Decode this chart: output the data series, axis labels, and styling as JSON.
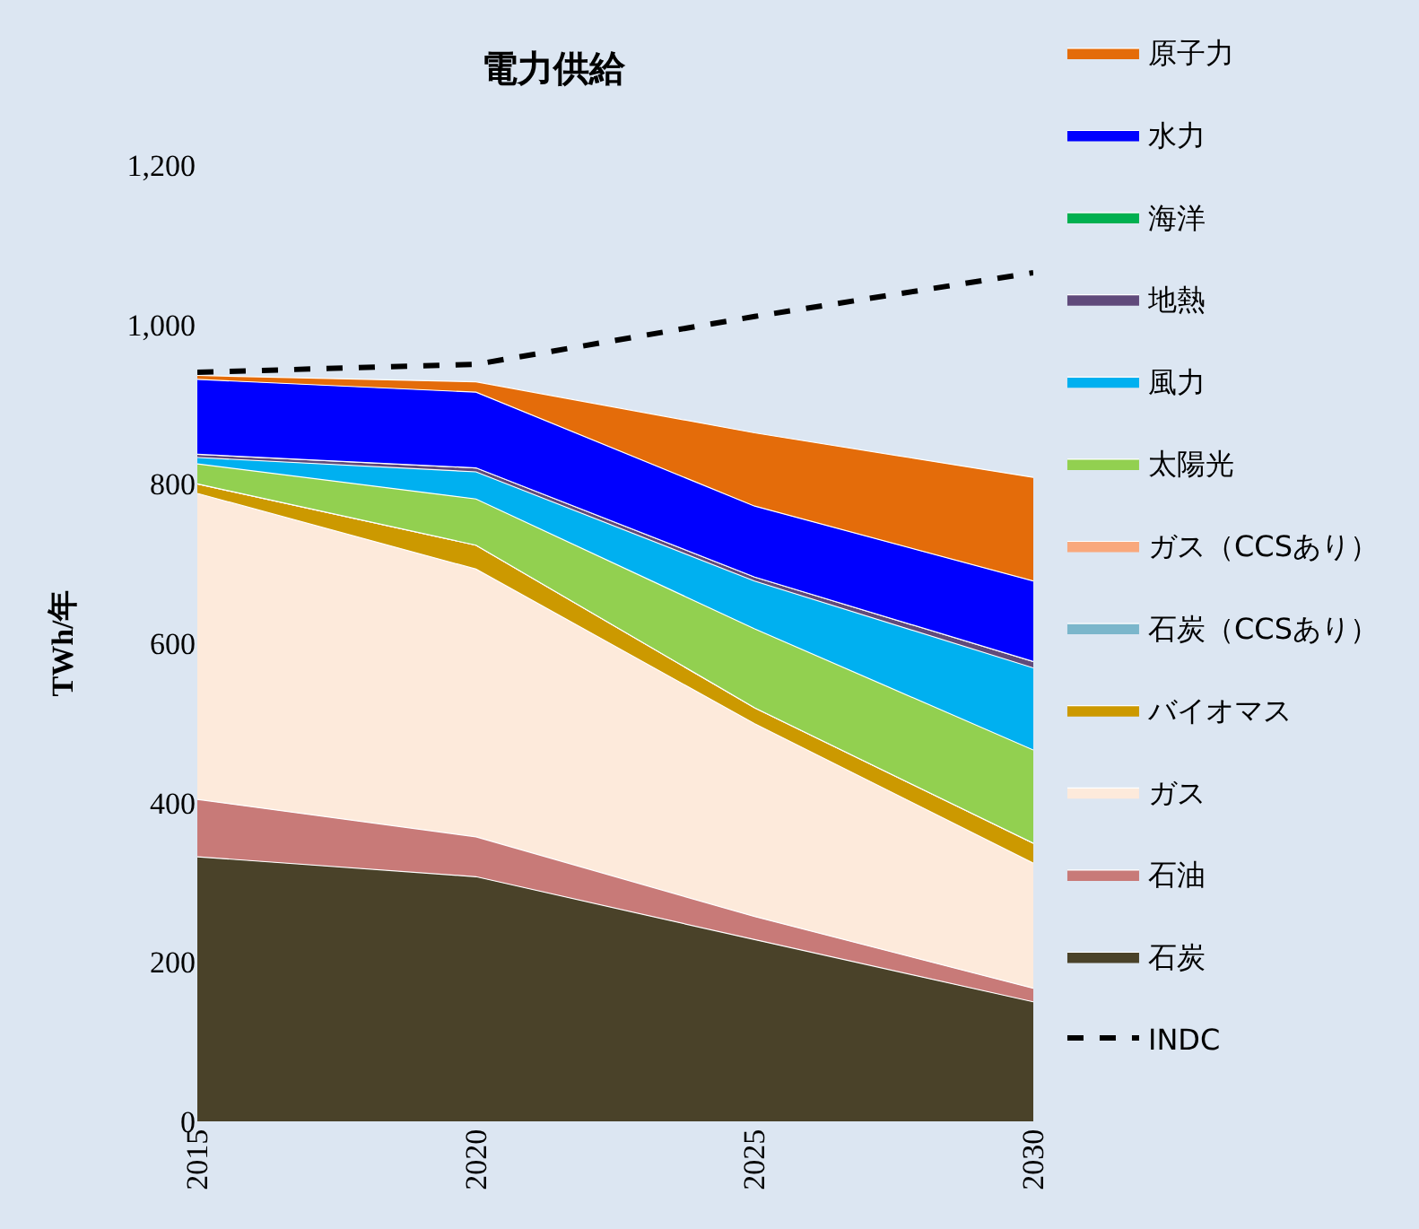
{
  "chart_data": {
    "type": "area",
    "stacked": true,
    "title": "電力供給",
    "ylabel": "TWh/年",
    "x": [
      2015,
      2020,
      2025,
      2030
    ],
    "xlim": [
      2015,
      2030
    ],
    "xticks": [
      2015,
      2020,
      2025,
      2030
    ],
    "ylim": [
      0,
      1200
    ],
    "yticks": [
      0,
      {
        "value": 200,
        "label": "200"
      },
      {
        "value": 400,
        "label": "400"
      },
      {
        "value": 600,
        "label": "600"
      },
      {
        "value": 800,
        "label": "800"
      },
      {
        "value": 1000,
        "label": "1,000"
      },
      {
        "value": 1200,
        "label": "1,200"
      }
    ],
    "grid": false,
    "legend": "right",
    "marker": "none",
    "series": [
      {
        "name": "石炭",
        "color": "#4a4229",
        "values": [
          332,
          307,
          228,
          150
        ]
      },
      {
        "name": "石油",
        "color": "#c87a78",
        "values": [
          72,
          50,
          29,
          17
        ]
      },
      {
        "name": "ガス",
        "color": "#fdeadb",
        "values": [
          384,
          336,
          242,
          157
        ]
      },
      {
        "name": "バイオマス",
        "color": "#cc9900",
        "values": [
          12,
          30,
          20,
          25
        ]
      },
      {
        "name": "石炭（CCSあり）",
        "color": "#7bb6cb",
        "values": [
          null,
          null,
          null,
          null
        ]
      },
      {
        "name": "ガス（CCSあり）",
        "color": "#f9a87c",
        "values": [
          null,
          null,
          null,
          null
        ]
      },
      {
        "name": "太陽光",
        "color": "#92d050",
        "values": [
          25,
          58,
          99,
          117
        ]
      },
      {
        "name": "風力",
        "color": "#00b0f0",
        "values": [
          8,
          34,
          60,
          103
        ]
      },
      {
        "name": "地熱",
        "color": "#604a7b",
        "values": [
          4,
          5,
          5,
          8
        ]
      },
      {
        "name": "海洋",
        "color": "#00b050",
        "values": [
          null,
          null,
          null,
          null
        ]
      },
      {
        "name": "水力",
        "color": "#0000ff",
        "values": [
          94,
          95,
          89,
          101
        ]
      },
      {
        "name": "原子力",
        "color": "#e46c0a",
        "values": [
          5,
          13,
          92,
          130
        ]
      },
      {
        "name": "INDC",
        "type": "line",
        "color": "#000000",
        "line_style": "dashed",
        "values": [
          940,
          950,
          1010,
          1065
        ]
      }
    ]
  }
}
